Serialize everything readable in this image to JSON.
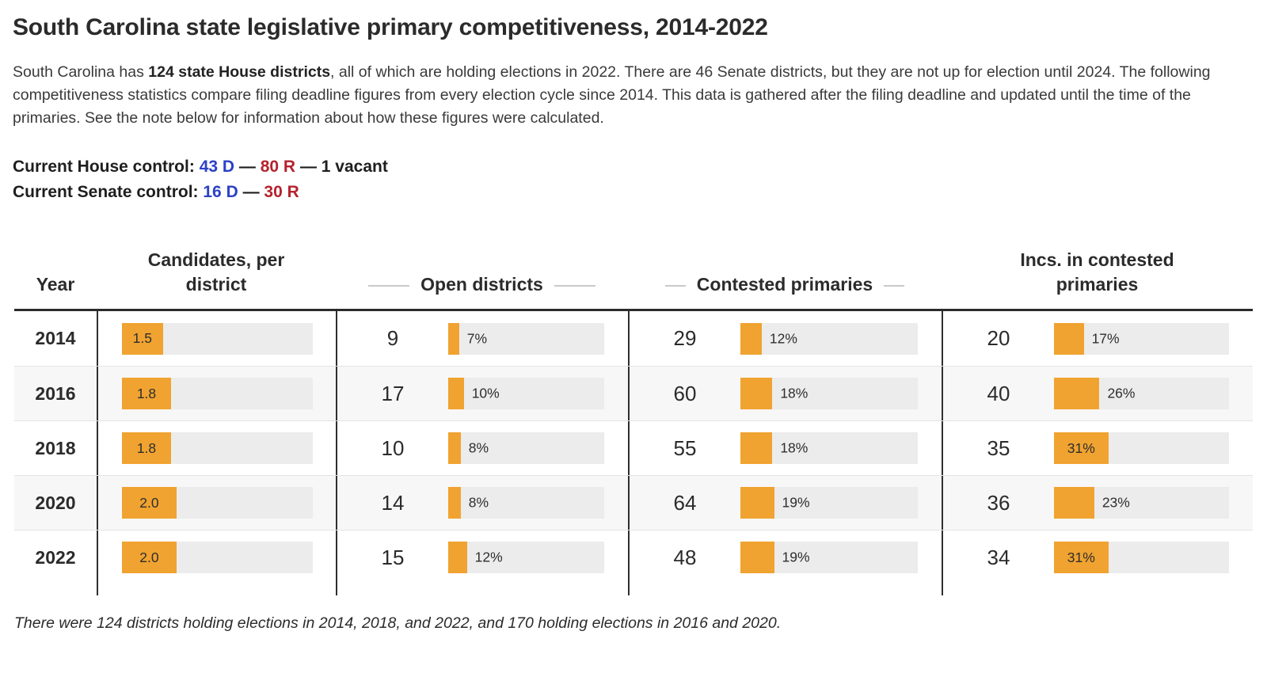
{
  "page": {
    "title": "South Carolina state legislative primary competitiveness, 2014-2022",
    "intro": {
      "pre": "South Carolina has ",
      "bold": "124 state House districts",
      "post": ", all of which are holding elections in 2022. There are 46 Senate districts, but they are not up for election until 2024. The following competitiveness statistics compare filing deadline figures from every election cycle since 2014. This data is gathered after the filing deadline and updated until the time of the primaries. See the note below for information about how these figures were calculated."
    },
    "house_control": {
      "label": "Current House control:",
      "dem": "43 D",
      "sep1": "—",
      "rep": "80 R",
      "sep2": "—",
      "vacant": "1 vacant"
    },
    "senate_control": {
      "label": "Current Senate control:",
      "dem": "16 D",
      "sep": "—",
      "rep": "30 R"
    },
    "note": "There were 124 districts holding elections in 2014, 2018, and 2022, and 170 holding elections in 2016 and 2020."
  },
  "colors": {
    "bar_orange": "#F0A330",
    "bar_track": "#ECECEC",
    "dem_blue": "#2C41C6",
    "rep_red": "#B4232D",
    "row_alt": "#F7F7F7"
  },
  "table_headers": {
    "year": "Year",
    "candidates": "Candidates, per district",
    "open": "Open districts",
    "contested": "Contested primaries",
    "incs": "Incs. in contested primaries"
  },
  "chart_data": {
    "type": "table",
    "title": "South Carolina state legislative primary competitiveness, 2014-2022",
    "categories": [
      "2014",
      "2016",
      "2018",
      "2020",
      "2022"
    ],
    "legend_position": "none",
    "grid": false,
    "series": [
      {
        "name": "Candidates, per district",
        "key": "candidates",
        "values": [
          1.5,
          1.8,
          1.8,
          2.0,
          2.0
        ],
        "display": [
          "1.5",
          "1.8",
          "1.8",
          "2.0",
          "2.0"
        ],
        "bar_scale_max": 7
      },
      {
        "name": "Open districts",
        "key": "open-districts",
        "counts": [
          9,
          17,
          10,
          14,
          15
        ],
        "pct": [
          7,
          10,
          8,
          8,
          12
        ],
        "pct_display": [
          "7%",
          "10%",
          "8%",
          "8%",
          "12%"
        ],
        "bar_scale_max": 100
      },
      {
        "name": "Contested primaries",
        "key": "contested-primaries",
        "counts": [
          29,
          60,
          55,
          64,
          48
        ],
        "pct": [
          12,
          18,
          18,
          19,
          19
        ],
        "pct_display": [
          "12%",
          "18%",
          "18%",
          "19%",
          "19%"
        ],
        "bar_scale_max": 100
      },
      {
        "name": "Incs. in contested primaries",
        "key": "incs-contested-primaries",
        "counts": [
          20,
          40,
          35,
          36,
          34
        ],
        "pct": [
          17,
          26,
          31,
          23,
          31
        ],
        "pct_display": [
          "17%",
          "26%",
          "31%",
          "23%",
          "31%"
        ],
        "bar_scale_max": 100
      }
    ]
  }
}
